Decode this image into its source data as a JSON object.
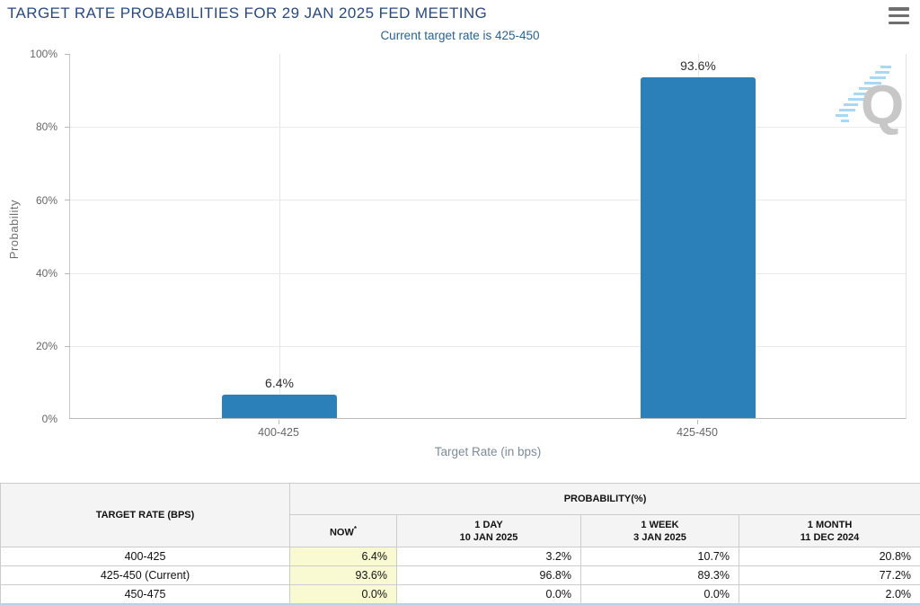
{
  "icons": {
    "menu": "hamburger-menu-icon",
    "watermark": "quikstrike-q-logo"
  },
  "colors": {
    "bar": "#2b80b9",
    "title_text": "#2a4a7d",
    "subtitle_text": "#2a628f",
    "now_column_bg": "#FAFAD2",
    "table_bottom_border": "#b9d2e8",
    "watermark_gray": "#c7c7c7",
    "watermark_blue": "#a8d8f2"
  },
  "chart_data": {
    "type": "bar",
    "title": "TARGET RATE PROBABILITIES FOR 29 JAN 2025 FED MEETING",
    "subtitle": "Current target rate is 425-450",
    "categories": [
      "400-425",
      "425-450"
    ],
    "values": [
      6.4,
      93.6
    ],
    "bar_labels": [
      "6.4%",
      "93.6%"
    ],
    "xlabel": "Target Rate (in bps)",
    "ylabel": "Probability",
    "ylim": [
      0,
      100
    ],
    "yticks": [
      "0%",
      "20%",
      "40%",
      "60%",
      "80%",
      "100%"
    ],
    "bar_color": "#2b80b9",
    "grid": true,
    "legend": "none"
  },
  "table": {
    "col1_header": "TARGET RATE (BPS)",
    "group_header": "PROBABILITY(%)",
    "sub_headers": [
      {
        "line1": "NOW",
        "sup": "*",
        "line2": ""
      },
      {
        "line1": "1 DAY",
        "line2": "10 JAN 2025"
      },
      {
        "line1": "1 WEEK",
        "line2": "3 JAN 2025"
      },
      {
        "line1": "1 MONTH",
        "line2": "11 DEC 2024"
      }
    ],
    "rows": [
      {
        "target_rate": "400-425",
        "now": "6.4%",
        "day": "3.2%",
        "week": "10.7%",
        "month": "20.8%"
      },
      {
        "target_rate": "425-450 (Current)",
        "now": "93.6%",
        "day": "96.8%",
        "week": "89.3%",
        "month": "77.2%"
      },
      {
        "target_rate": "450-475",
        "now": "0.0%",
        "day": "0.0%",
        "week": "0.0%",
        "month": "2.0%"
      }
    ]
  }
}
